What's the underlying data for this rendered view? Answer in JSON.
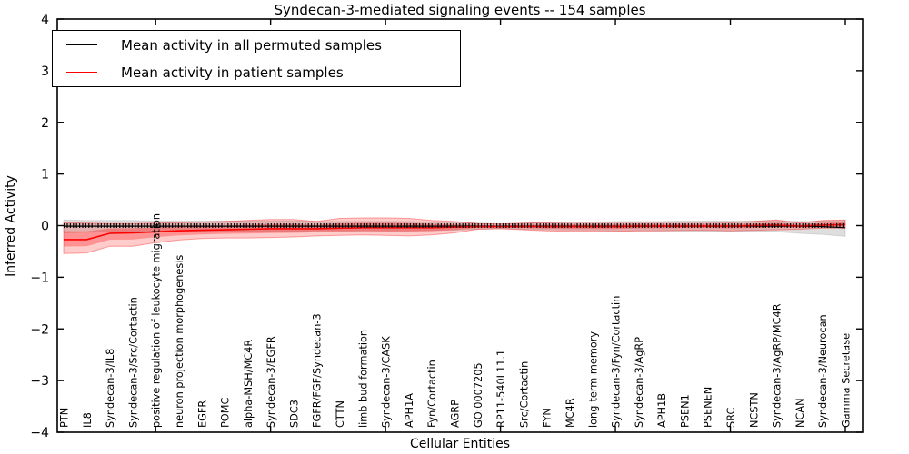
{
  "figure": {
    "title": "Syndecan-3-mediated signaling events -- 154 samples",
    "xlabel": "Cellular Entities",
    "ylabel": "Inferred Activity"
  },
  "legend": {
    "items": [
      {
        "label": "Mean activity in all permuted samples",
        "color": "#000000"
      },
      {
        "label": "Mean activity in patient samples",
        "color": "#ff0000"
      }
    ],
    "position": "upper left"
  },
  "chart_data": {
    "type": "line",
    "title": "Syndecan-3-mediated signaling events -- 154 samples",
    "xlabel": "Cellular Entities",
    "ylabel": "Inferred Activity",
    "ylim": [
      -4,
      4
    ],
    "yticks": [
      -4,
      -3,
      -2,
      -1,
      0,
      1,
      2,
      3,
      4
    ],
    "xtick_first_index": 4,
    "xtick_step": 5,
    "grid": false,
    "zero_line": true,
    "legend_position": "upper left",
    "categories": [
      "PTN",
      "IL8",
      "Syndecan-3/IL8",
      "Syndecan-3/Src/Cortactin",
      "positive regulation of leukocyte migration",
      "neuron projection morphogenesis",
      "EGFR",
      "POMC",
      "alpha-MSH/MC4R",
      "Syndecan-3/EGFR",
      "SDC3",
      "FGFR/FGF/Syndecan-3",
      "CTTN",
      "limb bud formation",
      "Syndecan-3/CASK",
      "APH1A",
      "Fyn/Cortactin",
      "AGRP",
      "GO:0007205",
      "RP11-540L11.1",
      "Src/Cortactin",
      "FYN",
      "MC4R",
      "long-term memory",
      "Syndecan-3/Fyn/Cortactin",
      "Syndecan-3/AgRP",
      "APH1B",
      "PSEN1",
      "PSENEN",
      "SRC",
      "NCSTN",
      "Syndecan-3/AgRP/MC4R",
      "NCAN",
      "Syndecan-3/Neurocan",
      "Gamma Secretase"
    ],
    "series": [
      {
        "name": "Mean activity in all permuted samples",
        "color": "#000000",
        "band_color": "rgba(0,0,0,0.13)",
        "values": [
          -0.01,
          -0.01,
          -0.01,
          -0.01,
          -0.01,
          -0.01,
          -0.01,
          -0.01,
          -0.01,
          -0.01,
          -0.01,
          -0.01,
          -0.01,
          -0.01,
          -0.01,
          -0.01,
          -0.01,
          -0.01,
          -0.01,
          -0.01,
          -0.01,
          -0.01,
          -0.01,
          -0.01,
          -0.01,
          -0.01,
          -0.01,
          -0.01,
          -0.01,
          -0.01,
          -0.01,
          -0.01,
          -0.01,
          -0.02,
          -0.04
        ],
        "band_lo": [
          -0.14,
          -0.13,
          -0.12,
          -0.12,
          -0.11,
          -0.11,
          -0.11,
          -0.11,
          -0.11,
          -0.11,
          -0.11,
          -0.1,
          -0.1,
          -0.1,
          -0.1,
          -0.1,
          -0.09,
          -0.09,
          -0.07,
          -0.06,
          -0.07,
          -0.08,
          -0.09,
          -0.09,
          -0.1,
          -0.1,
          -0.1,
          -0.11,
          -0.11,
          -0.11,
          -0.11,
          -0.12,
          -0.15,
          -0.17,
          -0.21
        ],
        "band_hi": [
          0.11,
          0.1,
          0.1,
          0.1,
          0.09,
          0.09,
          0.09,
          0.09,
          0.09,
          0.09,
          0.09,
          0.08,
          0.08,
          0.08,
          0.08,
          0.08,
          0.07,
          0.07,
          0.05,
          0.04,
          0.05,
          0.06,
          0.07,
          0.07,
          0.08,
          0.08,
          0.08,
          0.09,
          0.09,
          0.09,
          0.09,
          0.1,
          0.08,
          0.09,
          0.1
        ]
      },
      {
        "name": "Mean activity in patient samples",
        "color": "#ff0000",
        "band_color": "rgba(255,0,0,0.20)",
        "inner_band_color": "rgba(255,0,0,0.28)",
        "values": [
          -0.27,
          -0.27,
          -0.15,
          -0.14,
          -0.12,
          -0.1,
          -0.09,
          -0.08,
          -0.07,
          -0.06,
          -0.06,
          -0.06,
          -0.05,
          -0.04,
          -0.04,
          -0.04,
          -0.04,
          -0.03,
          -0.02,
          -0.02,
          -0.02,
          -0.02,
          -0.02,
          -0.02,
          -0.02,
          -0.01,
          -0.01,
          -0.01,
          -0.01,
          -0.01,
          0.0,
          0.01,
          -0.01,
          0.01,
          0.02
        ],
        "band_lo": [
          -0.54,
          -0.53,
          -0.4,
          -0.4,
          -0.33,
          -0.28,
          -0.25,
          -0.24,
          -0.24,
          -0.23,
          -0.22,
          -0.2,
          -0.19,
          -0.18,
          -0.19,
          -0.2,
          -0.18,
          -0.14,
          -0.07,
          -0.06,
          -0.08,
          -0.1,
          -0.11,
          -0.11,
          -0.11,
          -0.1,
          -0.1,
          -0.09,
          -0.09,
          -0.1,
          -0.09,
          -0.08,
          -0.07,
          -0.05,
          -0.05
        ],
        "band_hi": [
          0.06,
          0.05,
          0.04,
          0.04,
          0.05,
          0.06,
          0.07,
          0.08,
          0.1,
          0.12,
          0.12,
          0.08,
          0.14,
          0.15,
          0.15,
          0.14,
          0.1,
          0.08,
          0.04,
          0.03,
          0.05,
          0.06,
          0.07,
          0.07,
          0.07,
          0.07,
          0.07,
          0.07,
          0.07,
          0.06,
          0.08,
          0.11,
          0.05,
          0.1,
          0.11
        ]
      }
    ]
  }
}
